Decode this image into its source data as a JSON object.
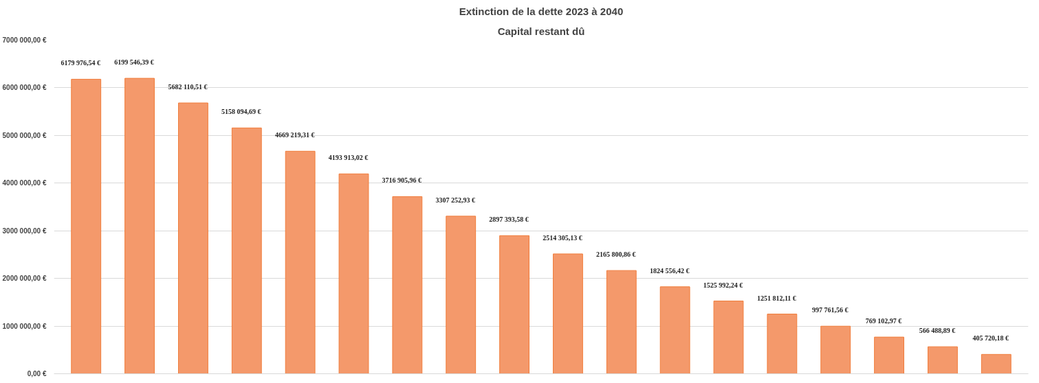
{
  "chart_data": {
    "type": "bar",
    "title": "Extinction de la dette 2023 à 2040",
    "subtitle": "Capital restant dû",
    "categories": [
      null,
      null,
      null,
      null,
      null,
      null,
      null,
      null,
      null,
      null,
      null,
      null,
      null,
      null,
      null,
      null,
      null,
      null
    ],
    "values": [
      6179976.54,
      6199546.39,
      5682110.51,
      5158094.69,
      4669219.31,
      4193913.02,
      3716905.96,
      3307252.93,
      2897393.58,
      2514305.13,
      2165800.86,
      1824556.42,
      1525992.24,
      1251812.11,
      997761.56,
      769102.97,
      566488.89,
      405720.18
    ],
    "value_labels": [
      "6179 976,54 €",
      "6199 546,39 €",
      "5682 110,51 €",
      "5158 094,69 €",
      "4669 219,31 €",
      "4193 913,02 €",
      "3716 905,96 €",
      "3307 252,93 €",
      "2897 393,58 €",
      "2514 305,13 €",
      "2165 800,86 €",
      "1824 556,42 €",
      "1525 992,24 €",
      "1251 812,11 €",
      "997 761,56 €",
      "769 102,97 €",
      "566 488,89 €",
      "405 720,18 €"
    ],
    "color": "#f4996b",
    "ylim": [
      0,
      7000000
    ],
    "yticks": [
      {
        "value": 0,
        "label": "0,00 €"
      },
      {
        "value": 1000000,
        "label": "1000 000,00 €"
      },
      {
        "value": 2000000,
        "label": "2000 000,00 €"
      },
      {
        "value": 3000000,
        "label": "3000 000,00 €"
      },
      {
        "value": 4000000,
        "label": "4000 000,00 €"
      },
      {
        "value": 5000000,
        "label": "5000 000,00 €"
      },
      {
        "value": 6000000,
        "label": "6000 000,00 €"
      },
      {
        "value": 7000000,
        "label": "7000 000,00 €"
      }
    ],
    "grid": "y"
  }
}
